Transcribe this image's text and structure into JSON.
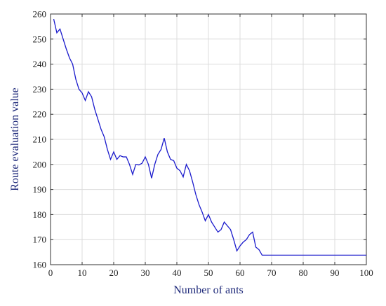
{
  "chart_data": {
    "type": "line",
    "xlabel": "Number of ants",
    "ylabel": "Route evaluation value",
    "xlim": [
      0,
      100
    ],
    "ylim": [
      160,
      260
    ],
    "xticks": [
      0,
      10,
      20,
      30,
      40,
      50,
      60,
      70,
      80,
      90,
      100
    ],
    "yticks": [
      160,
      170,
      180,
      190,
      200,
      210,
      220,
      230,
      240,
      250,
      260
    ],
    "grid": true,
    "line_color": "#1a1acc",
    "series": [
      {
        "x": [
          1,
          2,
          3,
          4,
          5,
          6,
          7,
          8,
          9,
          10,
          11,
          12,
          13,
          14,
          15,
          16,
          17,
          18,
          19,
          20,
          21,
          22,
          23,
          24,
          25,
          26,
          27,
          28,
          29,
          30,
          31,
          32,
          33,
          34,
          35,
          36,
          37,
          38,
          39,
          40,
          41,
          42,
          43,
          44,
          45,
          46,
          47,
          48,
          49,
          50,
          51,
          52,
          53,
          54,
          55,
          56,
          57,
          58,
          59,
          60,
          61,
          62,
          63,
          64,
          65,
          66,
          67,
          68,
          69,
          70,
          80,
          90,
          100
        ],
        "y": [
          258,
          252.5,
          254,
          250,
          246,
          242.5,
          240,
          234,
          230,
          228.5,
          225.5,
          229,
          227,
          222,
          218,
          214,
          211,
          206,
          202,
          205,
          202,
          203.5,
          203,
          203,
          200,
          196,
          200,
          199.8,
          200.5,
          203,
          200,
          194.5,
          200,
          204,
          206,
          210.5,
          205,
          202,
          201.5,
          198.5,
          197.5,
          195,
          200,
          197.5,
          193,
          188,
          184,
          181,
          177.5,
          180,
          177,
          175,
          173,
          174,
          177,
          175.5,
          174,
          170,
          165.5,
          167.5,
          169,
          170,
          172,
          173,
          167,
          166,
          163.8,
          163.8,
          163.8,
          163.8,
          163.8,
          163.8,
          163.8
        ]
      }
    ]
  }
}
